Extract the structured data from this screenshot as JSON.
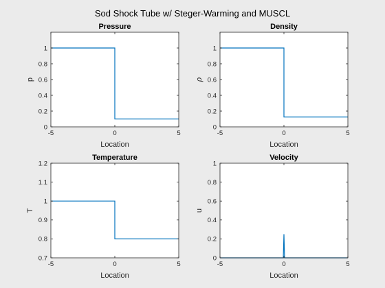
{
  "figure_title": "Sod Shock Tube w/ Steger-Warming and MUSCL",
  "chart_data": [
    {
      "type": "line",
      "title": "Pressure",
      "xlabel": "Location",
      "ylabel": "p",
      "xlim": [
        -5,
        5
      ],
      "ylim": [
        0,
        1.2
      ],
      "xticks": [
        "-5",
        "0",
        "5"
      ],
      "yticks": [
        "0",
        "0.2",
        "0.4",
        "0.6",
        "0.8",
        "1"
      ],
      "grid": false,
      "series": [
        {
          "color": "#0072bd",
          "x": [
            -5,
            0,
            0,
            5
          ],
          "y": [
            1,
            1,
            0.1,
            0.1
          ]
        }
      ]
    },
    {
      "type": "line",
      "title": "Density",
      "xlabel": "Location",
      "ylabel": "ρ",
      "xlim": [
        -5,
        5
      ],
      "ylim": [
        0,
        1.2
      ],
      "xticks": [
        "-5",
        "0",
        "5"
      ],
      "yticks": [
        "0",
        "0.2",
        "0.4",
        "0.6",
        "0.8",
        "1"
      ],
      "grid": false,
      "series": [
        {
          "color": "#0072bd",
          "x": [
            -5,
            0,
            0,
            5
          ],
          "y": [
            1,
            1,
            0.125,
            0.125
          ]
        }
      ]
    },
    {
      "type": "line",
      "title": "Temperature",
      "xlabel": "Location",
      "ylabel": "T",
      "xlim": [
        -5,
        5
      ],
      "ylim": [
        0.7,
        1.2
      ],
      "xticks": [
        "-5",
        "0",
        "5"
      ],
      "yticks": [
        "0.7",
        "0.8",
        "0.9",
        "1",
        "1.1",
        "1.2"
      ],
      "grid": false,
      "series": [
        {
          "color": "#0072bd",
          "x": [
            -5,
            0,
            0,
            5
          ],
          "y": [
            1,
            1,
            0.8,
            0.8
          ]
        }
      ]
    },
    {
      "type": "line",
      "title": "Velocity",
      "xlabel": "Location",
      "ylabel": "u",
      "xlim": [
        -5,
        5
      ],
      "ylim": [
        0,
        1
      ],
      "xticks": [
        "-5",
        "0",
        "5"
      ],
      "yticks": [
        "0",
        "0.2",
        "0.4",
        "0.6",
        "0.8",
        "1"
      ],
      "grid": false,
      "series": [
        {
          "color": "#0072bd",
          "x": [
            -5,
            -0.05,
            0,
            0.05,
            5
          ],
          "y": [
            0,
            0,
            0.25,
            0,
            0
          ]
        }
      ]
    }
  ]
}
